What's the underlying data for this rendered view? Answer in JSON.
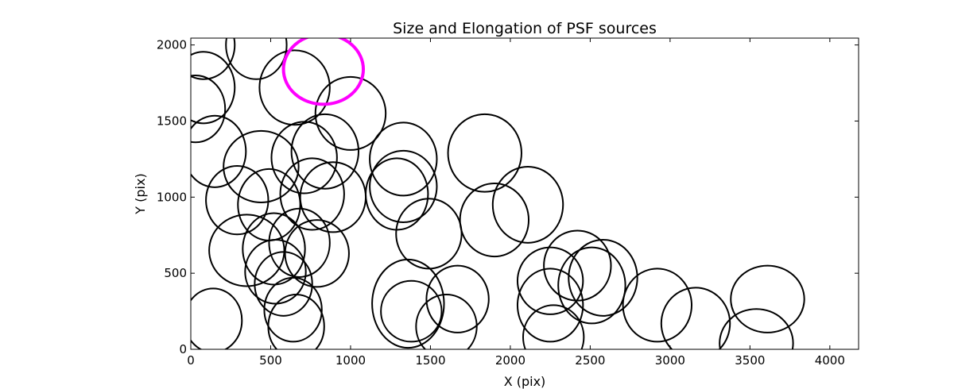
{
  "chart_data": {
    "type": "scatter",
    "title": "Size and Elongation of PSF sources",
    "xlabel": "X (pix)",
    "ylabel": "Y (pix)",
    "xlim": [
      0,
      4180
    ],
    "ylim": [
      0,
      2045
    ],
    "xticks": [
      0,
      500,
      1000,
      1500,
      2000,
      2500,
      3000,
      3500,
      4000
    ],
    "yticks": [
      0,
      500,
      1000,
      1500,
      2000
    ],
    "xtick_labels": [
      "0",
      "500",
      "1000",
      "1500",
      "2000",
      "2500",
      "3000",
      "3500",
      "4000"
    ],
    "ytick_labels": [
      "0",
      "500",
      "1000",
      "1500",
      "2000"
    ],
    "grid": false,
    "series": [
      {
        "marker": "ellipse outline",
        "color": "#000000",
        "points": [
          {
            "x": 80,
            "y": 2000,
            "w": 390,
            "h": 450
          },
          {
            "x": 410,
            "y": 2000,
            "w": 380,
            "h": 450
          },
          {
            "x": 80,
            "y": 1720,
            "w": 390,
            "h": 470
          },
          {
            "x": 30,
            "y": 1580,
            "w": 370,
            "h": 440
          },
          {
            "x": 150,
            "y": 1300,
            "w": 390,
            "h": 470
          },
          {
            "x": 650,
            "y": 1720,
            "w": 440,
            "h": 490
          },
          {
            "x": 1000,
            "y": 1550,
            "w": 440,
            "h": 480
          },
          {
            "x": 440,
            "y": 1200,
            "w": 470,
            "h": 470
          },
          {
            "x": 710,
            "y": 1260,
            "w": 410,
            "h": 470
          },
          {
            "x": 840,
            "y": 1300,
            "w": 420,
            "h": 490
          },
          {
            "x": 290,
            "y": 980,
            "w": 390,
            "h": 450
          },
          {
            "x": 490,
            "y": 950,
            "w": 390,
            "h": 470
          },
          {
            "x": 760,
            "y": 1020,
            "w": 400,
            "h": 470
          },
          {
            "x": 890,
            "y": 1000,
            "w": 410,
            "h": 460
          },
          {
            "x": 1330,
            "y": 1250,
            "w": 420,
            "h": 480
          },
          {
            "x": 1330,
            "y": 1070,
            "w": 420,
            "h": 470
          },
          {
            "x": 1290,
            "y": 1020,
            "w": 390,
            "h": 470
          },
          {
            "x": 1840,
            "y": 1290,
            "w": 460,
            "h": 510
          },
          {
            "x": 2110,
            "y": 950,
            "w": 440,
            "h": 500
          },
          {
            "x": 1900,
            "y": 850,
            "w": 430,
            "h": 480
          },
          {
            "x": 1490,
            "y": 760,
            "w": 410,
            "h": 460
          },
          {
            "x": 350,
            "y": 650,
            "w": 470,
            "h": 470
          },
          {
            "x": 520,
            "y": 660,
            "w": 390,
            "h": 470
          },
          {
            "x": 680,
            "y": 700,
            "w": 380,
            "h": 450
          },
          {
            "x": 790,
            "y": 630,
            "w": 400,
            "h": 440
          },
          {
            "x": 530,
            "y": 510,
            "w": 380,
            "h": 420
          },
          {
            "x": 580,
            "y": 430,
            "w": 360,
            "h": 420
          },
          {
            "x": 640,
            "y": 260,
            "w": 360,
            "h": 420
          },
          {
            "x": 660,
            "y": 150,
            "w": 350,
            "h": 420
          },
          {
            "x": 140,
            "y": 190,
            "w": 360,
            "h": 420
          },
          {
            "x": 1360,
            "y": 300,
            "w": 450,
            "h": 580
          },
          {
            "x": 1380,
            "y": 250,
            "w": 380,
            "h": 400
          },
          {
            "x": 1670,
            "y": 330,
            "w": 390,
            "h": 440
          },
          {
            "x": 1600,
            "y": 150,
            "w": 380,
            "h": 420
          },
          {
            "x": 2250,
            "y": 450,
            "w": 410,
            "h": 440
          },
          {
            "x": 2420,
            "y": 550,
            "w": 420,
            "h": 460
          },
          {
            "x": 2580,
            "y": 470,
            "w": 430,
            "h": 500
          },
          {
            "x": 2510,
            "y": 420,
            "w": 420,
            "h": 500
          },
          {
            "x": 2250,
            "y": 290,
            "w": 410,
            "h": 480
          },
          {
            "x": 2270,
            "y": 80,
            "w": 380,
            "h": 420
          },
          {
            "x": 2920,
            "y": 290,
            "w": 430,
            "h": 480
          },
          {
            "x": 3160,
            "y": 170,
            "w": 430,
            "h": 470
          },
          {
            "x": 3610,
            "y": 330,
            "w": 460,
            "h": 440
          },
          {
            "x": 3540,
            "y": 40,
            "w": 460,
            "h": 450
          }
        ]
      },
      {
        "marker": "highlighted ellipse outline",
        "color": "#ff00ff",
        "points": [
          {
            "x": 830,
            "y": 1840,
            "w": 500,
            "h": 460
          }
        ]
      }
    ]
  }
}
